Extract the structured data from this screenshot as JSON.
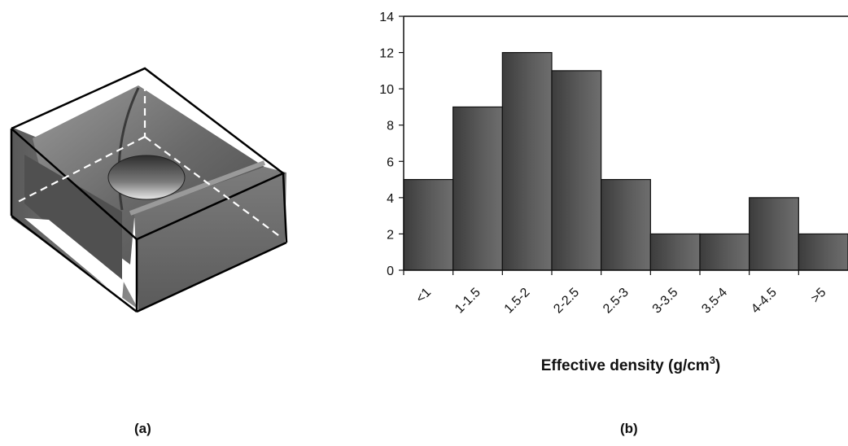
{
  "panels": {
    "a": "(a)",
    "b": "(b)"
  },
  "chart_data": {
    "type": "bar",
    "categories": [
      "<1",
      "1-1.5",
      "1.5-2",
      "2-2.5",
      "2.5-3",
      "3-3.5",
      "3.5-4",
      "4-4.5",
      ">5"
    ],
    "values": [
      5,
      9,
      12,
      11,
      5,
      2,
      2,
      4,
      2
    ],
    "title": "",
    "xlabel": "Effective density (g/cm",
    "xlabel_superscript": "3",
    "xlabel_suffix": ")",
    "ylabel": "",
    "ylim": [
      0,
      14
    ],
    "yticks": [
      0,
      2,
      4,
      6,
      8,
      10,
      12,
      14
    ],
    "grid": false,
    "bar_color": "#4a4a4a"
  }
}
